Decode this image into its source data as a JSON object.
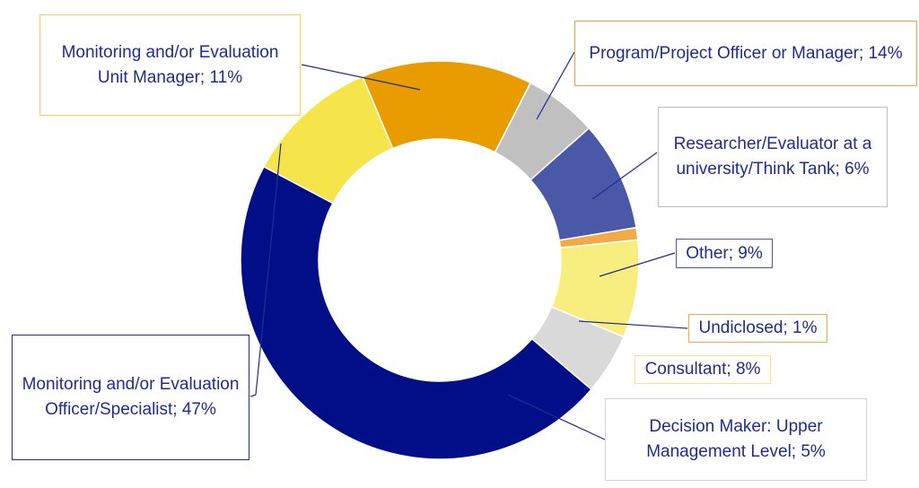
{
  "chart_data": {
    "type": "donut",
    "slices": [
      {
        "label": "Monitoring and/or Evaluation Unit Manager",
        "label_text": "Monitoring and/or Evaluation Unit Manager; 11%",
        "value": 11,
        "color": "#f5e44a"
      },
      {
        "label": "Program/Project Officer or Manager",
        "label_text": "Program/Project Officer or Manager; 14%",
        "value": 14,
        "color": "#e89c00"
      },
      {
        "label": "Researcher/Evaluator at a university/Think Tank",
        "label_text": "Researcher/Evaluator at a university/Think Tank; 6%",
        "value": 6,
        "color": "#c0c0c0"
      },
      {
        "label": "Other",
        "label_text": "Other; 9%",
        "value": 9,
        "color": "#4a58a8"
      },
      {
        "label": "Undiclosed",
        "label_text": "Undiclosed; 1%",
        "value": 1,
        "color": "#f2aa47"
      },
      {
        "label": "Consultant",
        "label_text": "Consultant; 8%",
        "value": 8,
        "color": "#f8ee80"
      },
      {
        "label": "Decision Maker: Upper Management Level",
        "label_text": "Decision Maker: Upper Management Level; 5%",
        "value": 5,
        "color": "#d9d9d9"
      },
      {
        "label": "Monitoring and/or Evaluation Officer/Specialist",
        "label_text": "Monitoring and/or Evaluation Officer/Specialist; 47%",
        "value": 47,
        "color": "#000f87"
      }
    ],
    "colors": {
      "label_text": "#1f2d8f",
      "leader_line": "#1f2d8f"
    }
  }
}
